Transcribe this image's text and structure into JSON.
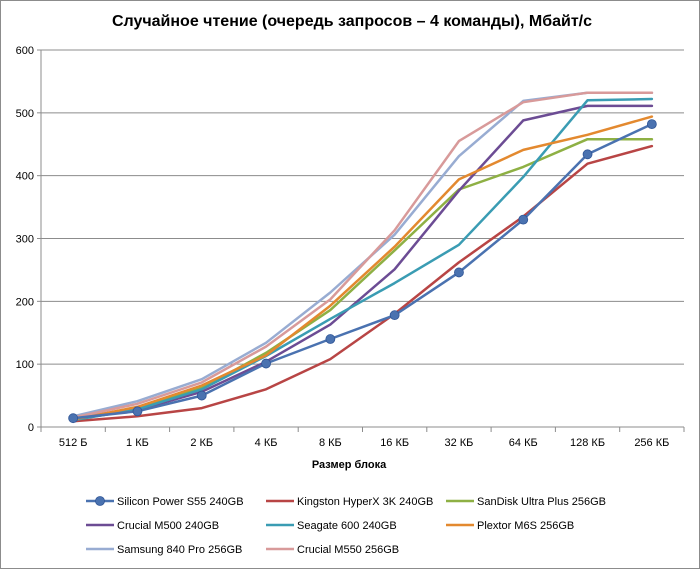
{
  "chart_data": {
    "type": "line",
    "title": "Случайное чтение (очередь запросов – 4 команды), Мбайт/с",
    "xlabel": "Размер блока",
    "ylabel": "",
    "ylim": [
      0,
      600
    ],
    "yticks": [
      "0",
      "100",
      "200",
      "300",
      "400",
      "500",
      "600"
    ],
    "categories": [
      "512 Б",
      "1 КБ",
      "2 КБ",
      "4 КБ",
      "8 КБ",
      "16 КБ",
      "32 КБ",
      "64 КБ",
      "128 КБ",
      "256 КБ"
    ],
    "grid": "horizontal",
    "legend_position": "bottom",
    "series": [
      {
        "name": "Silicon Power S55 240GB",
        "color": "#4a72b0",
        "markers": true,
        "values": [
          14,
          25,
          50,
          101,
          140,
          178,
          246,
          330,
          434,
          482
        ]
      },
      {
        "name": "Kingston HyperX 3K 240GB",
        "color": "#b84545",
        "markers": false,
        "values": [
          9,
          17,
          30,
          60,
          108,
          180,
          262,
          335,
          419,
          447
        ]
      },
      {
        "name": "SanDisk Ultra Plus 256GB",
        "color": "#8eb044",
        "markers": false,
        "values": [
          13,
          30,
          62,
          118,
          186,
          281,
          378,
          414,
          458,
          458
        ]
      },
      {
        "name": "Crucial M500 240GB",
        "color": "#6c4c94",
        "markers": false,
        "values": [
          12,
          27,
          56,
          104,
          163,
          251,
          376,
          488,
          511,
          511
        ]
      },
      {
        "name": "Seagate 600 240GB",
        "color": "#3a9cb3",
        "markers": false,
        "values": [
          11,
          28,
          60,
          113,
          172,
          229,
          290,
          398,
          520,
          522
        ]
      },
      {
        "name": "Plextor M6S 256GB",
        "color": "#e3892f",
        "markers": false,
        "values": [
          12,
          32,
          66,
          114,
          193,
          287,
          394,
          441,
          465,
          494
        ]
      },
      {
        "name": "Samsung 840 Pro 256GB",
        "color": "#98acd2",
        "markers": false,
        "values": [
          17,
          41,
          76,
          134,
          214,
          306,
          431,
          519,
          532,
          532
        ]
      },
      {
        "name": "Crucial M550 256GB",
        "color": "#d89a9a",
        "markers": false,
        "values": [
          15,
          37,
          71,
          128,
          203,
          313,
          455,
          517,
          532,
          532
        ]
      }
    ]
  }
}
